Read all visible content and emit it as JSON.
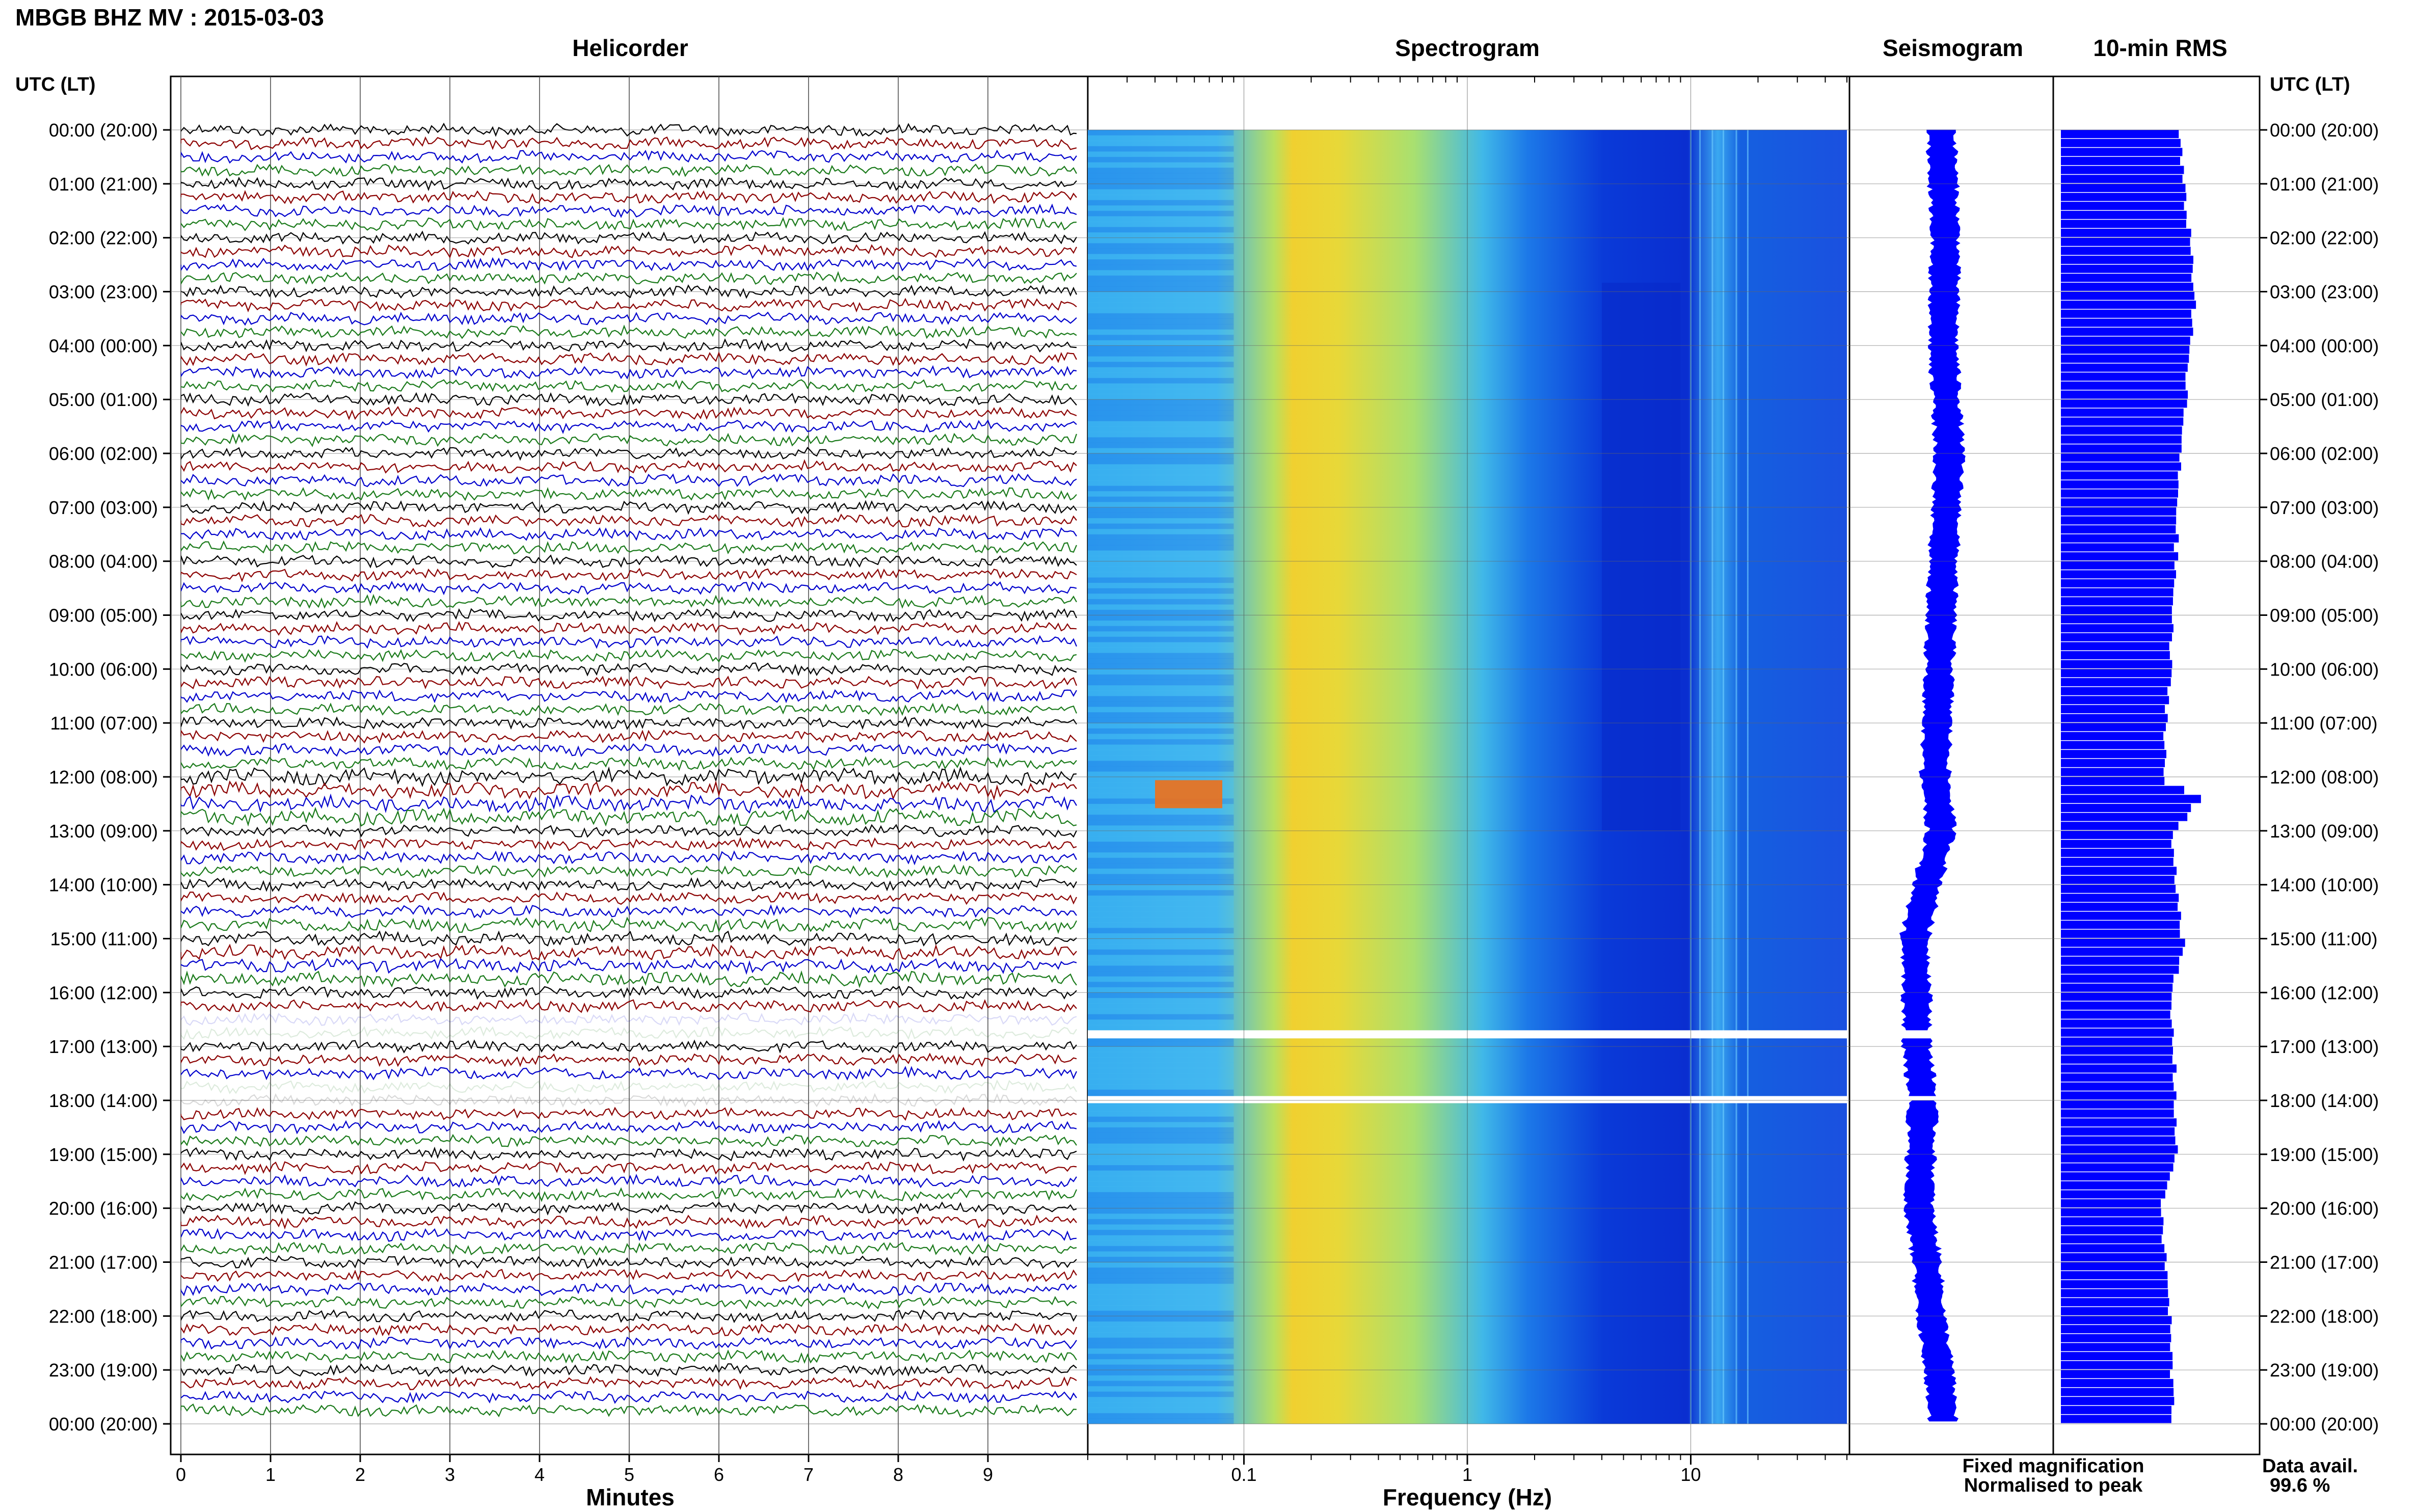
{
  "station_title": "MBGB BHZ MV : 2015-03-03",
  "panels": {
    "helicorder": "Helicorder",
    "spectrogram": "Spectrogram",
    "seismogram": "Seismogram",
    "rms": "10-min RMS"
  },
  "axis_header_left": "UTC (LT)",
  "axis_header_right": "UTC (LT)",
  "legend": {
    "fixed": "Fixed magnification",
    "normalised": "Normalised to peak",
    "fixed_color": "#0000ff",
    "normalised_color": "#ff0000"
  },
  "availability": {
    "label": "Data avail.",
    "value": "99.6 %"
  },
  "colors": {
    "trace_cycle": [
      "#000000",
      "#8b0000",
      "#0000cc",
      "#1a7a1a"
    ],
    "rms_bar": "#0000ff",
    "seismogram": "#0000ff"
  },
  "chart_data": [
    {
      "type": "line",
      "name": "helicorder",
      "title": "Helicorder",
      "xlabel": "Minutes",
      "x_ticks": [
        "0",
        "1",
        "2",
        "3",
        "4",
        "5",
        "6",
        "7",
        "8",
        "9"
      ],
      "xlim": [
        0,
        10
      ],
      "y_ticks": [
        "00:00 (20:00)",
        "01:00 (21:00)",
        "02:00 (22:00)",
        "03:00 (23:00)",
        "04:00 (00:00)",
        "05:00 (01:00)",
        "06:00 (02:00)",
        "07:00 (03:00)",
        "08:00 (04:00)",
        "09:00 (05:00)",
        "10:00 (06:00)",
        "11:00 (07:00)",
        "12:00 (08:00)",
        "13:00 (09:00)",
        "14:00 (10:00)",
        "15:00 (11:00)",
        "16:00 (12:00)",
        "17:00 (13:00)",
        "18:00 (14:00)",
        "19:00 (15:00)",
        "20:00 (16:00)",
        "21:00 (17:00)",
        "22:00 (18:00)",
        "23:00 (19:00)",
        "00:00 (20:00)"
      ],
      "y_ticks_right": [
        "00:00 (20:00)",
        "01:00 (21:00)",
        "02:00 (22:00)",
        "03:00 (23:00)",
        "04:00 (00:00)",
        "05:00 (01:00)",
        "06:00 (02:00)",
        "07:00 (03:00)",
        "08:00 (04:00)",
        "09:00 (05:00)",
        "10:00 (06:00)",
        "11:00 (07:00)",
        "12:00 (08:00)",
        "13:00 (09:00)",
        "14:00 (10:00)",
        "15:00 (11:00)",
        "16:00 (12:00)",
        "17:00 (13:00)",
        "18:00 (14:00)",
        "19:00 (15:00)",
        "20:00 (16:00)",
        "21:00 (17:00)",
        "22:00 (18:00)",
        "23:00 (19:00)",
        "00:00 (20:00)"
      ]
    },
    {
      "type": "heatmap",
      "name": "spectrogram",
      "title": "Spectrogram",
      "xlabel": "Frequency (Hz)",
      "x_scale": "log",
      "xlim": [
        0.02,
        50
      ],
      "x_ticks": [
        "0.1",
        "1",
        "10"
      ],
      "gaps_utc_hours": [
        [
          16.7,
          16.85
        ],
        [
          17.92,
          18.0
        ]
      ],
      "low_power_above_hz_utc_hours": [
        [
          4,
          13
        ]
      ],
      "events": [
        {
          "utc_hour": 12.25,
          "freq_hz": [
            0.04,
            0.08
          ],
          "level": "high"
        }
      ]
    },
    {
      "type": "line",
      "name": "seismogram",
      "title": "Seismogram",
      "x": [
        0,
        2,
        4,
        6,
        8,
        10,
        12,
        13,
        14,
        15,
        16,
        17,
        18,
        19,
        20,
        21,
        22,
        23,
        24
      ],
      "offset": [
        0.45,
        0.47,
        0.46,
        0.49,
        0.46,
        0.44,
        0.42,
        0.45,
        0.38,
        0.32,
        0.33,
        0.33,
        0.36,
        0.35,
        0.34,
        0.38,
        0.4,
        0.44,
        0.46
      ]
    },
    {
      "type": "bar",
      "name": "rms",
      "title": "10-min RMS",
      "x": [
        0,
        1,
        2,
        3,
        4,
        5,
        6,
        7,
        8,
        9,
        10,
        11,
        12,
        12.3,
        13,
        14,
        15,
        16,
        17,
        18,
        19,
        20,
        21,
        22,
        23,
        24
      ],
      "values": [
        0.62,
        0.64,
        0.68,
        0.7,
        0.67,
        0.65,
        0.62,
        0.61,
        0.6,
        0.58,
        0.57,
        0.55,
        0.54,
        0.73,
        0.58,
        0.61,
        0.64,
        0.57,
        0.59,
        0.6,
        0.6,
        0.52,
        0.55,
        0.57,
        0.58,
        0.59
      ]
    }
  ]
}
